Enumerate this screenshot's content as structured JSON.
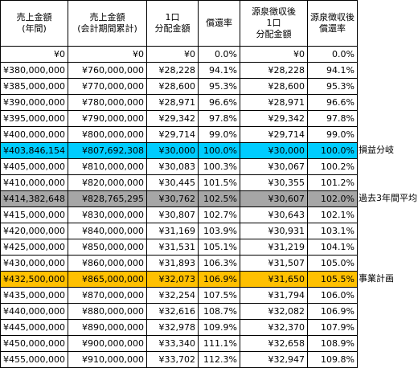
{
  "headers": [
    "売上金額\n(年間)",
    "売上金額\n(会計期間累計)",
    "1口\n分配金額",
    "償還率",
    "源泉徴収後\n1口\n分配金額",
    "源泉徴収後\n償還率"
  ],
  "rows": [
    [
      "¥0",
      "¥0",
      "¥0",
      "0.0%",
      "¥0",
      "0.0%"
    ],
    [
      "¥380,000,000",
      "¥760,000,000",
      "¥28,228",
      "94.1%",
      "¥28,228",
      "94.1%"
    ],
    [
      "¥385,000,000",
      "¥770,000,000",
      "¥28,600",
      "95.3%",
      "¥28,600",
      "95.3%"
    ],
    [
      "¥390,000,000",
      "¥780,000,000",
      "¥28,971",
      "96.6%",
      "¥28,971",
      "96.6%"
    ],
    [
      "¥395,000,000",
      "¥790,000,000",
      "¥29,342",
      "97.8%",
      "¥29,342",
      "97.8%"
    ],
    [
      "¥400,000,000",
      "¥800,000,000",
      "¥29,714",
      "99.0%",
      "¥29,714",
      "99.0%"
    ],
    [
      "¥403,846,154",
      "¥807,692,308",
      "¥30,000",
      "100.0%",
      "¥30,000",
      "100.0%"
    ],
    [
      "¥405,000,000",
      "¥810,000,000",
      "¥30,083",
      "100.3%",
      "¥30,067",
      "100.2%"
    ],
    [
      "¥410,000,000",
      "¥820,000,000",
      "¥30,445",
      "101.5%",
      "¥30,355",
      "101.2%"
    ],
    [
      "¥414,382,648",
      "¥828,765,295",
      "¥30,762",
      "102.5%",
      "¥30,607",
      "102.0%"
    ],
    [
      "¥415,000,000",
      "¥830,000,000",
      "¥30,807",
      "102.7%",
      "¥30,643",
      "102.1%"
    ],
    [
      "¥420,000,000",
      "¥840,000,000",
      "¥31,169",
      "103.9%",
      "¥30,931",
      "103.1%"
    ],
    [
      "¥425,000,000",
      "¥850,000,000",
      "¥31,531",
      "105.1%",
      "¥31,219",
      "104.1%"
    ],
    [
      "¥430,000,000",
      "¥860,000,000",
      "¥31,893",
      "106.3%",
      "¥31,507",
      "105.0%"
    ],
    [
      "¥432,500,000",
      "¥865,000,000",
      "¥32,073",
      "106.9%",
      "¥31,650",
      "105.5%"
    ],
    [
      "¥435,000,000",
      "¥870,000,000",
      "¥32,254",
      "107.5%",
      "¥31,794",
      "106.0%"
    ],
    [
      "¥440,000,000",
      "¥880,000,000",
      "¥32,616",
      "108.7%",
      "¥32,082",
      "106.9%"
    ],
    [
      "¥445,000,000",
      "¥890,000,000",
      "¥32,978",
      "109.9%",
      "¥32,370",
      "107.9%"
    ],
    [
      "¥450,000,000",
      "¥900,000,000",
      "¥33,340",
      "111.1%",
      "¥32,658",
      "108.9%"
    ],
    [
      "¥455,000,000",
      "¥910,000,000",
      "¥33,702",
      "112.3%",
      "¥32,947",
      "109.8%"
    ]
  ],
  "highlights": [
    {
      "row": 6,
      "color": "#00ccff",
      "label": "損益分岐"
    },
    {
      "row": 9,
      "color": "#a6a6a6",
      "label": "過去3年間平均"
    },
    {
      "row": 14,
      "color": "#ffc000",
      "label": "事業計画"
    }
  ]
}
